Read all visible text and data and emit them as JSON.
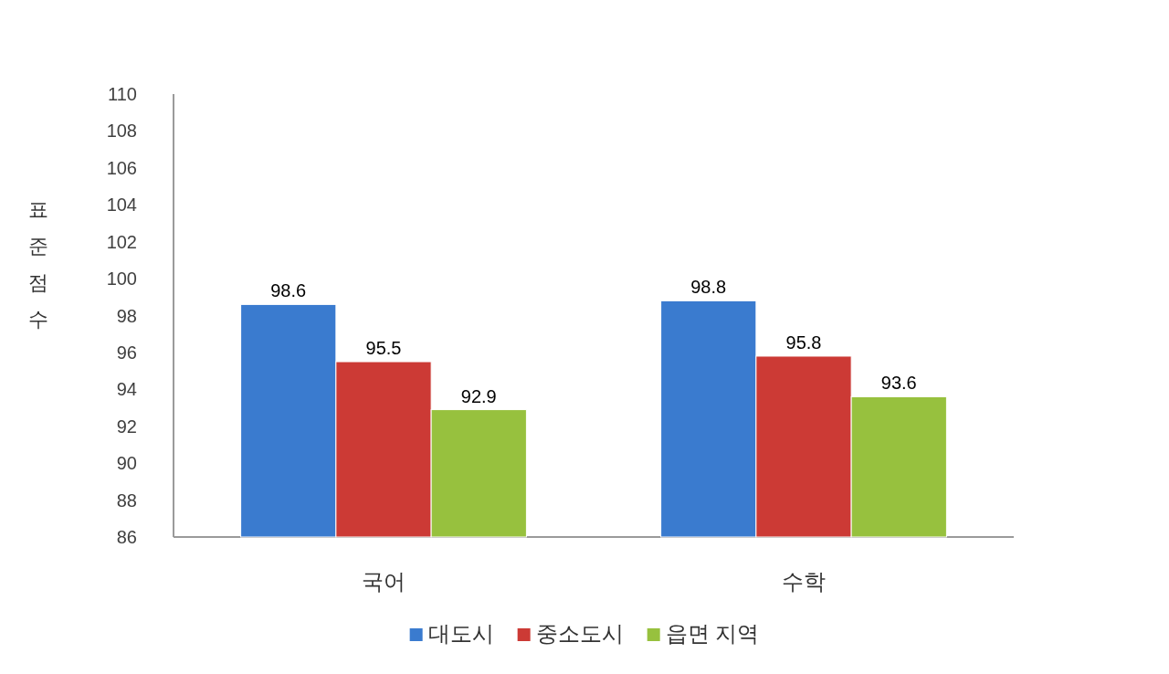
{
  "chart_data": {
    "type": "bar",
    "ylabel": "표준점수",
    "categories": [
      "국어",
      "수학"
    ],
    "series": [
      {
        "name": "대도시",
        "color": "#3a7bcf",
        "values": [
          98.6,
          98.8
        ]
      },
      {
        "name": "중소도시",
        "color": "#cc3a35",
        "values": [
          95.5,
          95.8
        ]
      },
      {
        "name": "읍면 지역",
        "color": "#97c13e",
        "values": [
          92.9,
          93.6
        ]
      }
    ],
    "ylim": [
      86,
      110
    ],
    "yticks": [
      86,
      88,
      90,
      92,
      94,
      96,
      98,
      100,
      102,
      104,
      106,
      108,
      110
    ],
    "data_labels": true,
    "legend": "bottom",
    "grid": false
  }
}
